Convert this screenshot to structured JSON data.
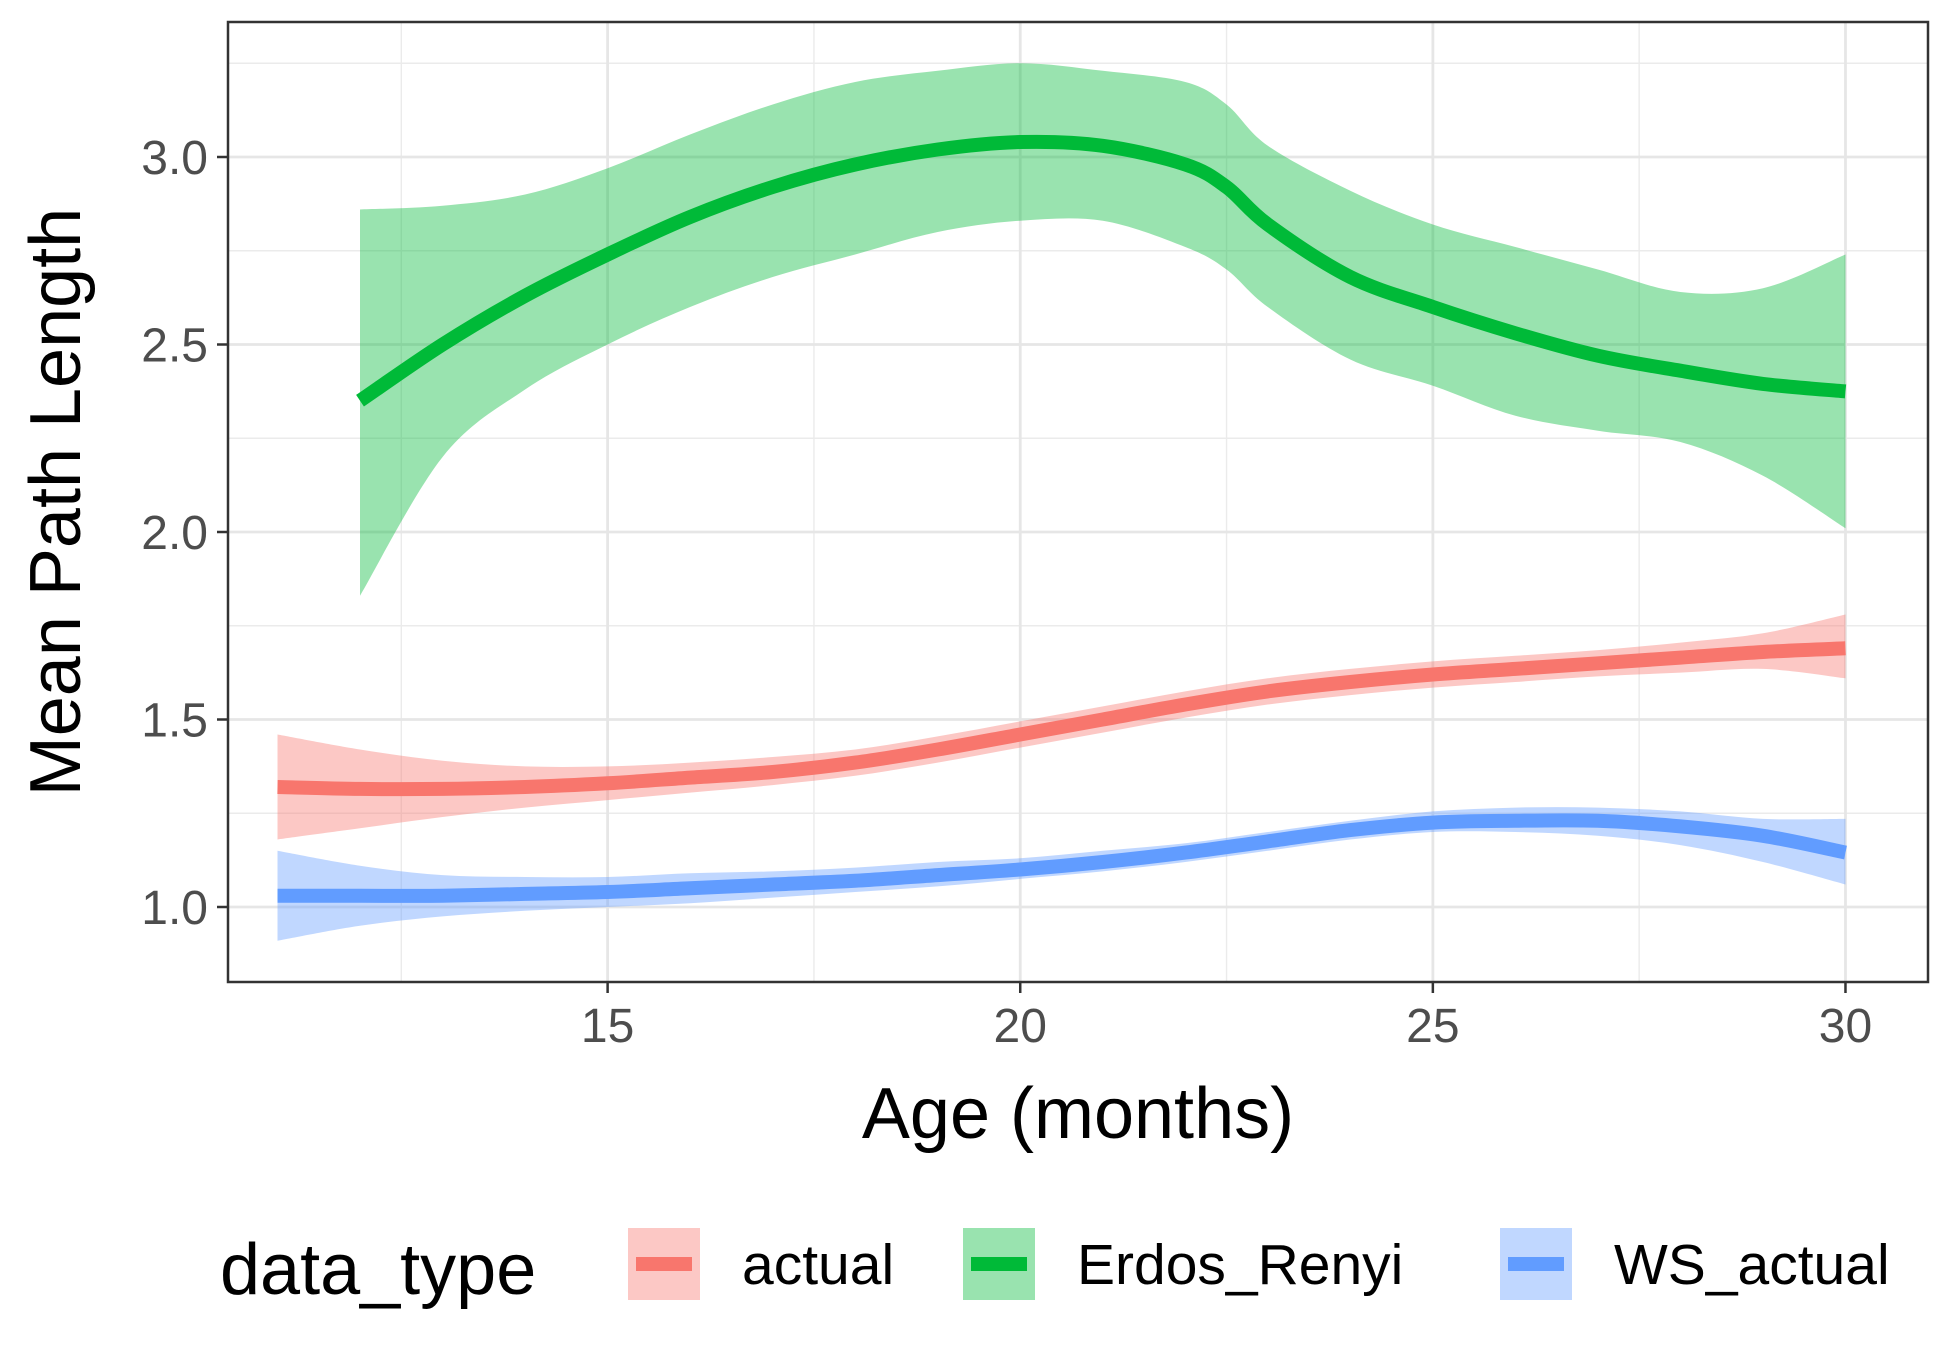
{
  "chart_data": {
    "type": "line",
    "title": "",
    "xlabel": "Age (months)",
    "ylabel": "Mean Path Length",
    "xlim": [
      10.4,
      31.0
    ],
    "ylim": [
      0.8,
      3.36
    ],
    "x_ticks": [
      15,
      20,
      25,
      30
    ],
    "x_tick_labels": [
      "15",
      "20",
      "25",
      "30"
    ],
    "y_ticks": [
      1.0,
      1.5,
      2.0,
      2.5,
      3.0
    ],
    "y_tick_labels": [
      "1.0",
      "1.5",
      "2.0",
      "2.5",
      "3.0"
    ],
    "grid": true,
    "legend": {
      "title": "data_type",
      "position": "bottom"
    },
    "series": [
      {
        "name": "actual",
        "color": "#F8766D",
        "x": [
          11,
          12,
          13,
          14,
          15,
          16,
          17,
          18,
          19,
          20,
          21,
          22,
          23,
          24,
          25,
          26,
          27,
          28,
          29,
          30
        ],
        "y": [
          1.32,
          1.315,
          1.315,
          1.32,
          1.33,
          1.345,
          1.36,
          1.385,
          1.42,
          1.46,
          1.5,
          1.54,
          1.575,
          1.6,
          1.62,
          1.635,
          1.65,
          1.665,
          1.68,
          1.69
        ],
        "lower": [
          1.18,
          1.21,
          1.24,
          1.265,
          1.285,
          1.305,
          1.325,
          1.35,
          1.385,
          1.425,
          1.465,
          1.505,
          1.54,
          1.565,
          1.585,
          1.6,
          1.615,
          1.625,
          1.635,
          1.61
        ],
        "upper": [
          1.46,
          1.42,
          1.39,
          1.375,
          1.375,
          1.385,
          1.4,
          1.42,
          1.455,
          1.495,
          1.535,
          1.575,
          1.61,
          1.635,
          1.655,
          1.67,
          1.685,
          1.705,
          1.73,
          1.78
        ]
      },
      {
        "name": "Erdos_Renyi",
        "color": "#00BA38",
        "x": [
          12,
          13,
          14,
          15,
          16,
          17,
          18,
          19,
          20,
          21,
          22,
          22.5,
          23,
          24,
          25,
          26,
          27,
          28,
          29,
          30
        ],
        "y": [
          2.35,
          2.5,
          2.63,
          2.74,
          2.84,
          2.92,
          2.98,
          3.02,
          3.04,
          3.03,
          2.98,
          2.92,
          2.82,
          2.68,
          2.6,
          2.53,
          2.47,
          2.43,
          2.395,
          2.375
        ],
        "lower": [
          1.83,
          2.2,
          2.38,
          2.5,
          2.6,
          2.68,
          2.74,
          2.8,
          2.83,
          2.83,
          2.76,
          2.7,
          2.6,
          2.46,
          2.39,
          2.31,
          2.27,
          2.24,
          2.15,
          2.01
        ],
        "upper": [
          2.86,
          2.87,
          2.9,
          2.97,
          3.06,
          3.14,
          3.2,
          3.23,
          3.25,
          3.23,
          3.2,
          3.14,
          3.03,
          2.91,
          2.82,
          2.76,
          2.7,
          2.64,
          2.65,
          2.74
        ]
      },
      {
        "name": "WS_actual",
        "color": "#619CFF",
        "x": [
          11,
          12,
          13,
          14,
          15,
          16,
          17,
          18,
          19,
          20,
          21,
          22,
          23,
          24,
          25,
          26,
          27,
          28,
          29,
          30
        ],
        "y": [
          1.03,
          1.03,
          1.03,
          1.035,
          1.04,
          1.05,
          1.06,
          1.07,
          1.085,
          1.1,
          1.12,
          1.145,
          1.175,
          1.205,
          1.225,
          1.23,
          1.23,
          1.215,
          1.19,
          1.145
        ],
        "lower": [
          0.91,
          0.95,
          0.975,
          0.99,
          1.0,
          1.01,
          1.025,
          1.04,
          1.055,
          1.075,
          1.095,
          1.12,
          1.15,
          1.18,
          1.2,
          1.2,
          1.19,
          1.165,
          1.12,
          1.06
        ],
        "upper": [
          1.15,
          1.11,
          1.085,
          1.08,
          1.08,
          1.09,
          1.095,
          1.105,
          1.12,
          1.13,
          1.15,
          1.17,
          1.2,
          1.23,
          1.255,
          1.265,
          1.265,
          1.255,
          1.235,
          1.235
        ]
      }
    ]
  }
}
